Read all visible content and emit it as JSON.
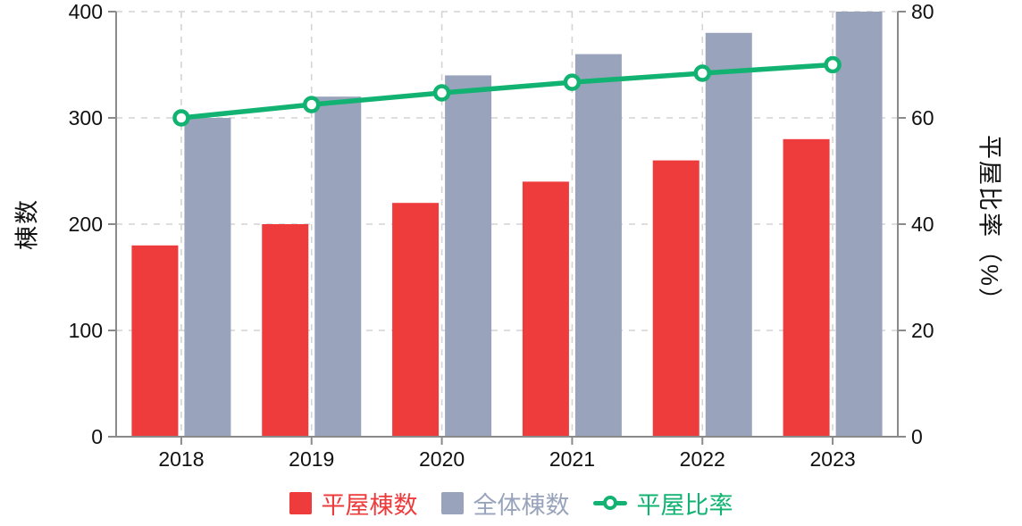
{
  "chart_data": {
    "type": "bar",
    "subtype": "grouped-bars-with-line",
    "categories": [
      "2018",
      "2019",
      "2020",
      "2021",
      "2022",
      "2023"
    ],
    "series": [
      {
        "name": "平屋棟数",
        "type": "bar",
        "axis": "left",
        "color": "#EE3B3B",
        "values": [
          180,
          200,
          220,
          240,
          260,
          280
        ]
      },
      {
        "name": "全体棟数",
        "type": "bar",
        "axis": "left",
        "color": "#99A4BC",
        "values": [
          300,
          320,
          340,
          360,
          380,
          400
        ]
      },
      {
        "name": "平屋比率",
        "type": "line",
        "axis": "right",
        "color": "#12B372",
        "values": [
          60,
          62.5,
          64.7,
          66.7,
          68.4,
          70
        ]
      }
    ],
    "left_axis": {
      "label": "棟数",
      "ticks": [
        0,
        100,
        200,
        300,
        400
      ],
      "range": [
        0,
        400
      ]
    },
    "right_axis": {
      "label": "平屋比率（%）",
      "ticks": [
        0,
        20,
        40,
        60,
        80
      ],
      "range": [
        0,
        80
      ]
    },
    "x_axis": {
      "tick_labels": [
        "2018",
        "2019",
        "2020",
        "2021",
        "2022",
        "2023"
      ]
    },
    "grid": true,
    "grid_style": "dashed",
    "legend_position": "bottom",
    "title": ""
  },
  "legend": {
    "items": [
      {
        "label": "平屋棟数",
        "color": "#EE3B3B",
        "marker": "square"
      },
      {
        "label": "全体棟数",
        "color": "#99A4BC",
        "marker": "square"
      },
      {
        "label": "平屋比率",
        "color": "#12B372",
        "marker": "line-dot"
      }
    ]
  },
  "colors": {
    "hiraya_bar": "#EE3B3B",
    "zentai_bar": "#99A4BC",
    "ratio_line": "#12B372",
    "spine": "#8A8A8A",
    "gridline": "#D4D4D4",
    "tick_text": "#111111",
    "background": "#FFFFFF"
  }
}
